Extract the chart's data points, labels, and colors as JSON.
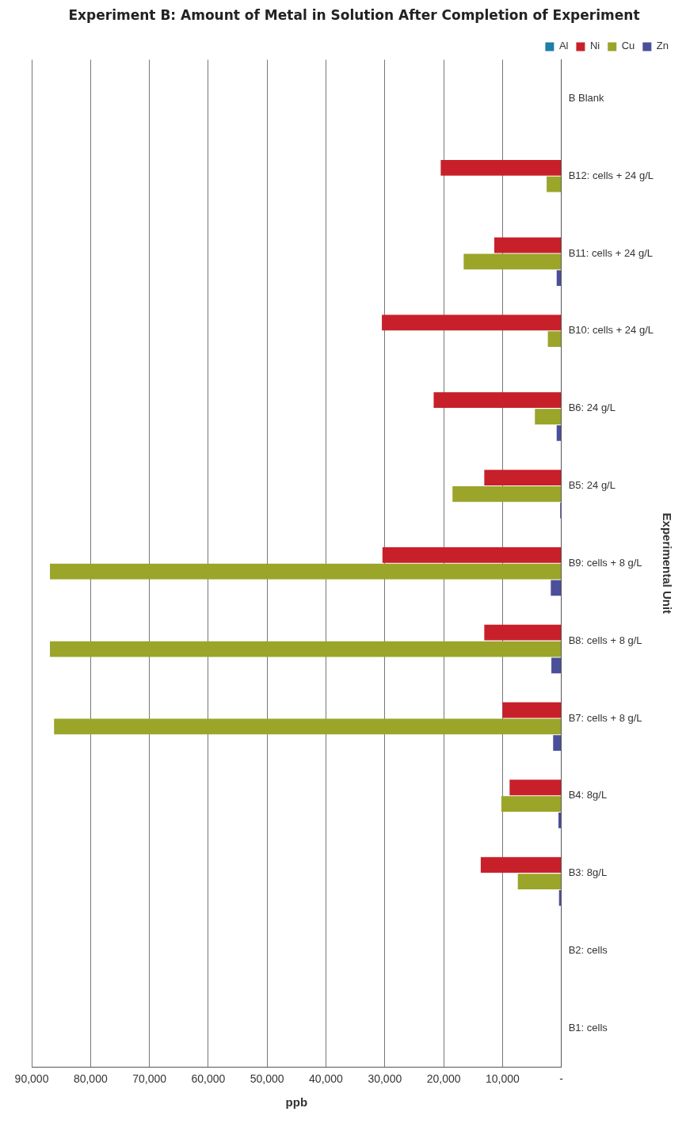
{
  "chart_data": {
    "type": "bar",
    "orientation": "horizontal",
    "title": "Experiment B: Amount of Metal in Solution After Completion of Experiment",
    "xlabel": "ppb",
    "ylabel": "Experimental Unit",
    "categories": [
      "B Blank",
      "B12: cells + 24 g/L",
      "B11: cells + 24 g/L",
      "B10: cells + 24 g/L",
      "B6: 24 g/L",
      "B5: 24 g/L",
      "B9: cells + 8 g/L",
      "B8: cells + 8 g/L",
      "B7: cells + 8 g/L",
      "B4: 8g/L",
      "B3: 8g/L",
      "B2: cells",
      "B1: cells"
    ],
    "series": [
      {
        "name": "Al",
        "color": "#1f7fa8",
        "values": [
          0,
          0,
          0,
          0,
          0,
          0,
          0,
          0,
          0,
          0,
          0,
          0,
          0
        ]
      },
      {
        "name": "Ni",
        "color": "#c8202a",
        "values": [
          0,
          20500,
          11400,
          30500,
          21700,
          13100,
          30400,
          13100,
          10000,
          8800,
          13700,
          0,
          0
        ]
      },
      {
        "name": "Cu",
        "color": "#9aa52a",
        "values": [
          0,
          2500,
          16600,
          2300,
          4500,
          18500,
          86900,
          86900,
          86200,
          10200,
          7400,
          0,
          0
        ]
      },
      {
        "name": "Zn",
        "color": "#4a4f9a",
        "values": [
          0,
          0,
          800,
          0,
          800,
          200,
          1800,
          1700,
          1400,
          500,
          400,
          0,
          0
        ]
      }
    ],
    "xlim": [
      90000,
      0
    ],
    "xticks": [
      {
        "value": 0,
        "label": "-"
      },
      {
        "value": 10000,
        "label": "10,000"
      },
      {
        "value": 20000,
        "label": "20,000"
      },
      {
        "value": 30000,
        "label": "30,000"
      },
      {
        "value": 40000,
        "label": "40,000"
      },
      {
        "value": 50000,
        "label": "50,000"
      },
      {
        "value": 60000,
        "label": "60,000"
      },
      {
        "value": 70000,
        "label": "70,000"
      },
      {
        "value": 80000,
        "label": "80,000"
      },
      {
        "value": 90000,
        "label": "90,000"
      }
    ],
    "grid": "x",
    "legend": "top right"
  }
}
